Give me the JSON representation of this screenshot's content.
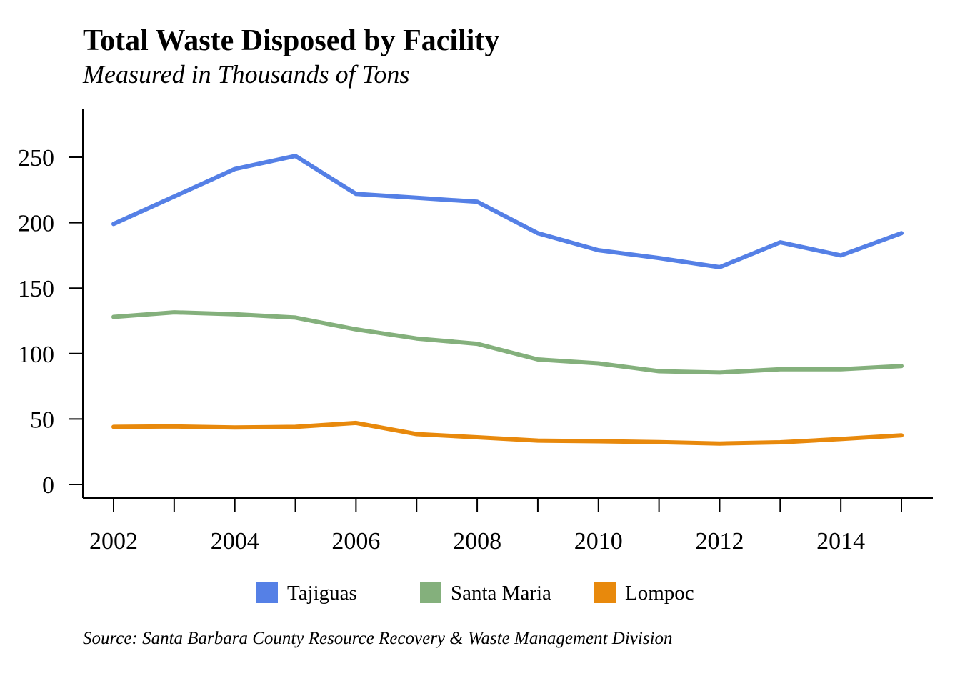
{
  "chart_data": {
    "type": "line",
    "title": "Total Waste Disposed by Facility",
    "subtitle": "Measured in Thousands of Tons",
    "source": "Source: Santa Barbara County Resource Recovery & Waste Management Division",
    "xlabel": "",
    "ylabel": "",
    "x": [
      2002,
      2003,
      2004,
      2005,
      2006,
      2007,
      2008,
      2009,
      2010,
      2011,
      2012,
      2013,
      2014,
      2015
    ],
    "x_ticks": [
      2002,
      2003,
      2004,
      2005,
      2006,
      2007,
      2008,
      2009,
      2010,
      2011,
      2012,
      2013,
      2014,
      2015
    ],
    "x_tick_labels": [
      "2002",
      "2004",
      "2006",
      "2008",
      "2010",
      "2012",
      "2014"
    ],
    "xlim": [
      2001.5,
      2015.5
    ],
    "y_ticks": [
      0,
      50,
      100,
      150,
      200,
      250
    ],
    "ylim": [
      -10,
      285
    ],
    "grid": false,
    "legend_position": "bottom",
    "series": [
      {
        "name": "Tajiguas",
        "color": "#5580e6",
        "values": [
          199,
          220,
          241,
          251,
          222,
          219,
          216,
          192,
          179,
          173,
          166,
          185,
          175,
          192
        ]
      },
      {
        "name": "Santa Maria",
        "color": "#84b07c",
        "values": [
          128,
          131.5,
          130,
          127.5,
          118.5,
          111.5,
          107.5,
          95.5,
          92.5,
          86.5,
          85.5,
          88,
          88,
          90.5
        ]
      },
      {
        "name": "Lompoc",
        "color": "#e8890c",
        "values": [
          44,
          44.3,
          43.5,
          44,
          47,
          38.5,
          36,
          33.5,
          33,
          32.3,
          31.3,
          32.2,
          34.7,
          37.5
        ]
      }
    ]
  }
}
